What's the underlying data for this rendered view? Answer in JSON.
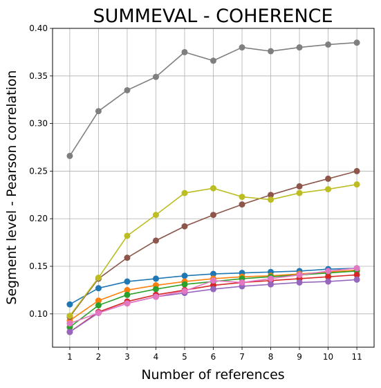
{
  "chart_data": {
    "type": "line",
    "title": "SUMMEVAL - COHERENCE",
    "xlabel": "Number of references",
    "ylabel": "Segment level - Pearson correlation",
    "x": [
      1,
      2,
      3,
      4,
      5,
      6,
      7,
      8,
      9,
      10,
      11
    ],
    "xticks": [
      "1",
      "2",
      "3",
      "4",
      "5",
      "6",
      "7",
      "8",
      "9",
      "10",
      "11"
    ],
    "yticks": [
      "0.10",
      "0.15",
      "0.20",
      "0.25",
      "0.30",
      "0.35",
      "0.40"
    ],
    "ytick_values": [
      0.1,
      0.15,
      0.2,
      0.25,
      0.3,
      0.35,
      0.4
    ],
    "xlim": [
      0.4,
      11.6
    ],
    "ylim": [
      0.065,
      0.4
    ],
    "grid": true,
    "legend": "none",
    "series": [
      {
        "color": "#1f77b4",
        "values": [
          0.11,
          0.127,
          0.134,
          0.137,
          0.14,
          0.142,
          0.143,
          0.144,
          0.145,
          0.147,
          0.148
        ]
      },
      {
        "color": "#ff7f0e",
        "values": [
          0.093,
          0.114,
          0.125,
          0.13,
          0.134,
          0.137,
          0.139,
          0.14,
          0.142,
          0.144,
          0.146
        ]
      },
      {
        "color": "#2ca02c",
        "values": [
          0.086,
          0.109,
          0.12,
          0.126,
          0.131,
          0.134,
          0.137,
          0.139,
          0.141,
          0.143,
          0.145
        ]
      },
      {
        "color": "#d62728",
        "values": [
          0.081,
          0.102,
          0.113,
          0.12,
          0.125,
          0.13,
          0.133,
          0.135,
          0.137,
          0.139,
          0.141
        ]
      },
      {
        "color": "#9467bd",
        "values": [
          0.081,
          0.101,
          0.111,
          0.118,
          0.122,
          0.126,
          0.129,
          0.131,
          0.133,
          0.134,
          0.136
        ]
      },
      {
        "color": "#8c564b",
        "values": [
          0.097,
          0.137,
          0.159,
          0.177,
          0.192,
          0.204,
          0.215,
          0.225,
          0.234,
          0.242,
          0.25
        ]
      },
      {
        "color": "#e377c2",
        "values": [
          0.09,
          0.101,
          0.111,
          0.118,
          0.124,
          0.135,
          0.133,
          0.137,
          0.141,
          0.145,
          0.148
        ]
      },
      {
        "color": "#7f7f7f",
        "values": [
          0.266,
          0.313,
          0.335,
          0.349,
          0.375,
          0.366,
          0.38,
          0.376,
          0.38,
          0.383,
          0.385
        ]
      },
      {
        "color": "#bcbd22",
        "values": [
          0.098,
          0.138,
          0.182,
          0.204,
          0.227,
          0.232,
          0.223,
          0.22,
          0.227,
          0.231,
          0.236
        ]
      }
    ]
  }
}
